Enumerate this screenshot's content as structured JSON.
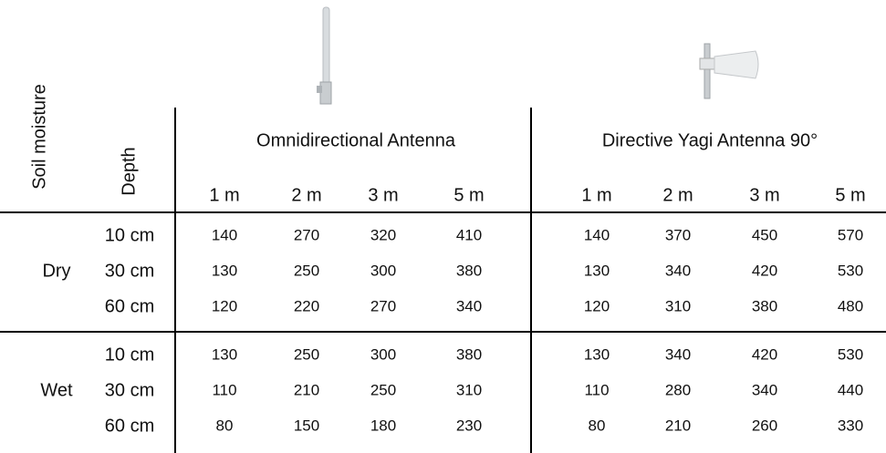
{
  "table": {
    "corner": [
      "Soil moisture",
      "Depth"
    ],
    "groups": [
      "Omnidirectional Antenna",
      "Directive Yagi Antenna 90°"
    ],
    "distances": [
      "1 m",
      "2 m",
      "3 m",
      "5 m",
      "1 m",
      "2 m",
      "3 m",
      "5 m"
    ],
    "sections": [
      {
        "moisture": "Dry",
        "rows": [
          {
            "depth": "10 cm",
            "values": [
              140,
              270,
              320,
              410,
              140,
              370,
              450,
              570
            ]
          },
          {
            "depth": "30 cm",
            "values": [
              130,
              250,
              300,
              380,
              130,
              340,
              420,
              530
            ]
          },
          {
            "depth": "60 cm",
            "values": [
              120,
              220,
              270,
              340,
              120,
              310,
              380,
              480
            ]
          }
        ]
      },
      {
        "moisture": "Wet",
        "rows": [
          {
            "depth": "10 cm",
            "values": [
              130,
              250,
              300,
              380,
              130,
              340,
              420,
              530
            ]
          },
          {
            "depth": "30 cm",
            "values": [
              110,
              210,
              250,
              310,
              110,
              280,
              340,
              440
            ]
          },
          {
            "depth": "60 cm",
            "values": [
              80,
              150,
              180,
              230,
              80,
              210,
              260,
              330
            ]
          }
        ]
      }
    ]
  }
}
